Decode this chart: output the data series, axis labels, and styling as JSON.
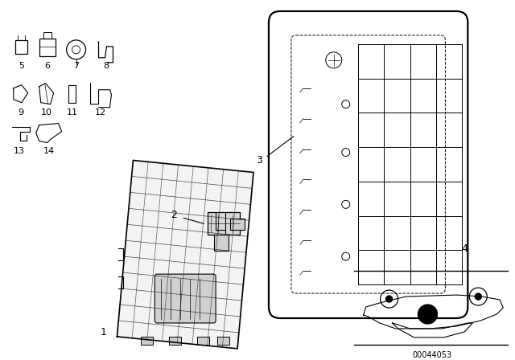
{
  "background_color": "#ffffff",
  "line_color": "#000000",
  "diagram_code": "00044053",
  "fig_width": 6.4,
  "fig_height": 4.48,
  "dpi": 100
}
